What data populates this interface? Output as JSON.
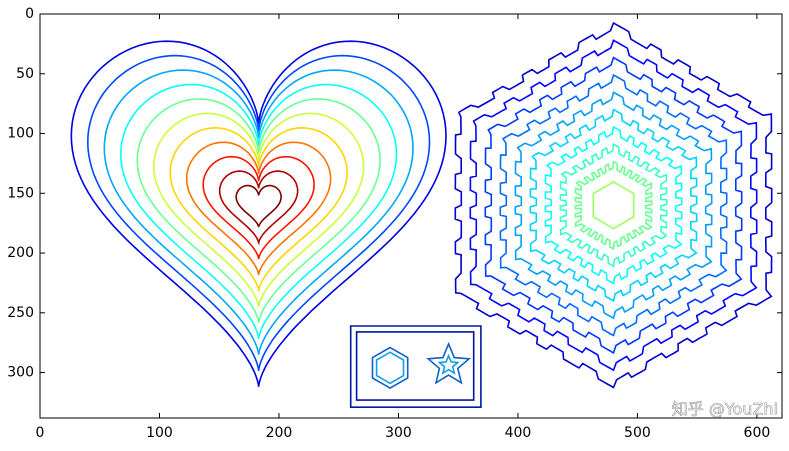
{
  "chart_data": {
    "type": "contour",
    "xlim": [
      0,
      621
    ],
    "ylim": [
      338,
      0
    ],
    "xticks": [
      0,
      100,
      200,
      300,
      400,
      500,
      600
    ],
    "yticks": [
      0,
      50,
      100,
      150,
      200,
      250,
      300
    ],
    "watermark": "知乎 @YouZhi"
  }
}
